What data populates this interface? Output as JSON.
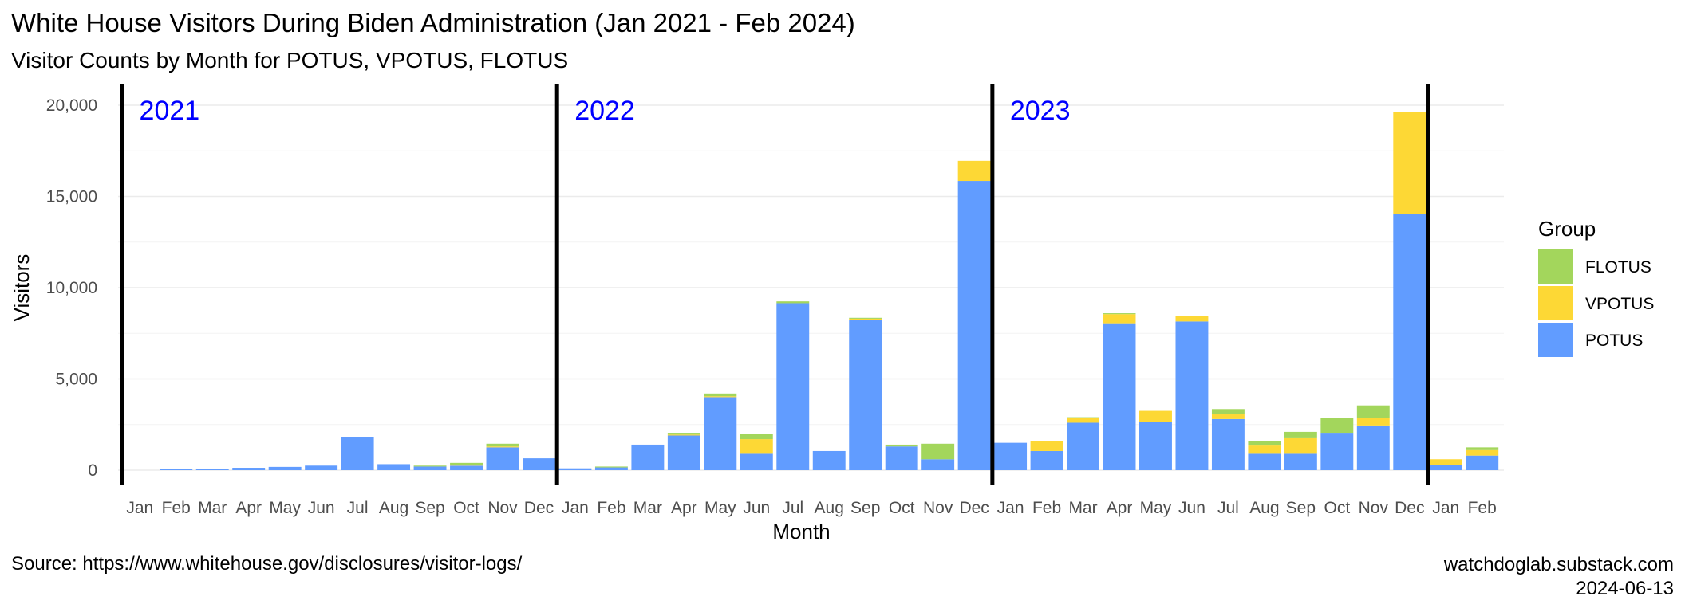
{
  "title": "White House Visitors During Biden Administration (Jan 2021 - Feb 2024)",
  "subtitle": "Visitor Counts by Month for POTUS, VPOTUS, FLOTUS",
  "caption_left": "Source: https://www.whitehouse.gov/disclosures/visitor-logs/",
  "caption_right_1": "watchdoglab.substack.com",
  "caption_right_2": "2024-06-13",
  "chart_data": {
    "type": "bar",
    "stacked": true,
    "xlabel": "Month",
    "ylabel": "Visitors",
    "ylim": [
      0,
      20000
    ],
    "yticks": [
      0,
      5000,
      10000,
      15000,
      20000
    ],
    "ytick_labels": [
      "0",
      "5,000",
      "10,000",
      "15,000",
      "20,000"
    ],
    "grid": true,
    "legend_position": "right",
    "legend_title": "Group",
    "year_labels": [
      "2021",
      "2022",
      "2023"
    ],
    "year_dividers_before": [
      "2021-Jan",
      "2022-Jan",
      "2023-Jan",
      "2024-Jan"
    ],
    "categories": [
      "Jan",
      "Feb",
      "Mar",
      "Apr",
      "May",
      "Jun",
      "Jul",
      "Aug",
      "Sep",
      "Oct",
      "Nov",
      "Dec",
      "Jan",
      "Feb",
      "Mar",
      "Apr",
      "May",
      "Jun",
      "Jul",
      "Aug",
      "Sep",
      "Oct",
      "Nov",
      "Dec",
      "Jan",
      "Feb",
      "Mar",
      "Apr",
      "May",
      "Jun",
      "Jul",
      "Aug",
      "Sep",
      "Oct",
      "Nov",
      "Dec",
      "Jan",
      "Feb"
    ],
    "years": [
      2021,
      2021,
      2021,
      2021,
      2021,
      2021,
      2021,
      2021,
      2021,
      2021,
      2021,
      2021,
      2022,
      2022,
      2022,
      2022,
      2022,
      2022,
      2022,
      2022,
      2022,
      2022,
      2022,
      2022,
      2023,
      2023,
      2023,
      2023,
      2023,
      2023,
      2023,
      2023,
      2023,
      2023,
      2023,
      2023,
      2024,
      2024
    ],
    "series": [
      {
        "name": "POTUS",
        "color": "#619CFF",
        "values": [
          0,
          50,
          60,
          130,
          180,
          250,
          1800,
          330,
          200,
          250,
          1250,
          650,
          100,
          150,
          1400,
          1900,
          4000,
          900,
          9150,
          1050,
          8250,
          1300,
          600,
          15850,
          1500,
          1050,
          2600,
          8050,
          2650,
          8150,
          2800,
          900,
          900,
          2050,
          2450,
          14050,
          300,
          800
        ]
      },
      {
        "name": "VPOTUS",
        "color": "#FDD835",
        "values": [
          0,
          0,
          0,
          0,
          0,
          0,
          0,
          0,
          0,
          50,
          50,
          0,
          0,
          0,
          0,
          50,
          50,
          800,
          0,
          0,
          50,
          0,
          0,
          1100,
          0,
          550,
          250,
          500,
          600,
          300,
          300,
          450,
          850,
          0,
          400,
          5600,
          300,
          300
        ]
      },
      {
        "name": "FLOTUS",
        "color": "#A3D65C",
        "values": [
          0,
          0,
          0,
          0,
          0,
          0,
          0,
          0,
          50,
          100,
          150,
          0,
          0,
          50,
          0,
          100,
          150,
          300,
          100,
          0,
          50,
          100,
          850,
          0,
          0,
          0,
          50,
          50,
          0,
          0,
          250,
          250,
          350,
          800,
          700,
          0,
          0,
          150
        ]
      }
    ],
    "legend_order": [
      "FLOTUS",
      "VPOTUS",
      "POTUS"
    ]
  }
}
